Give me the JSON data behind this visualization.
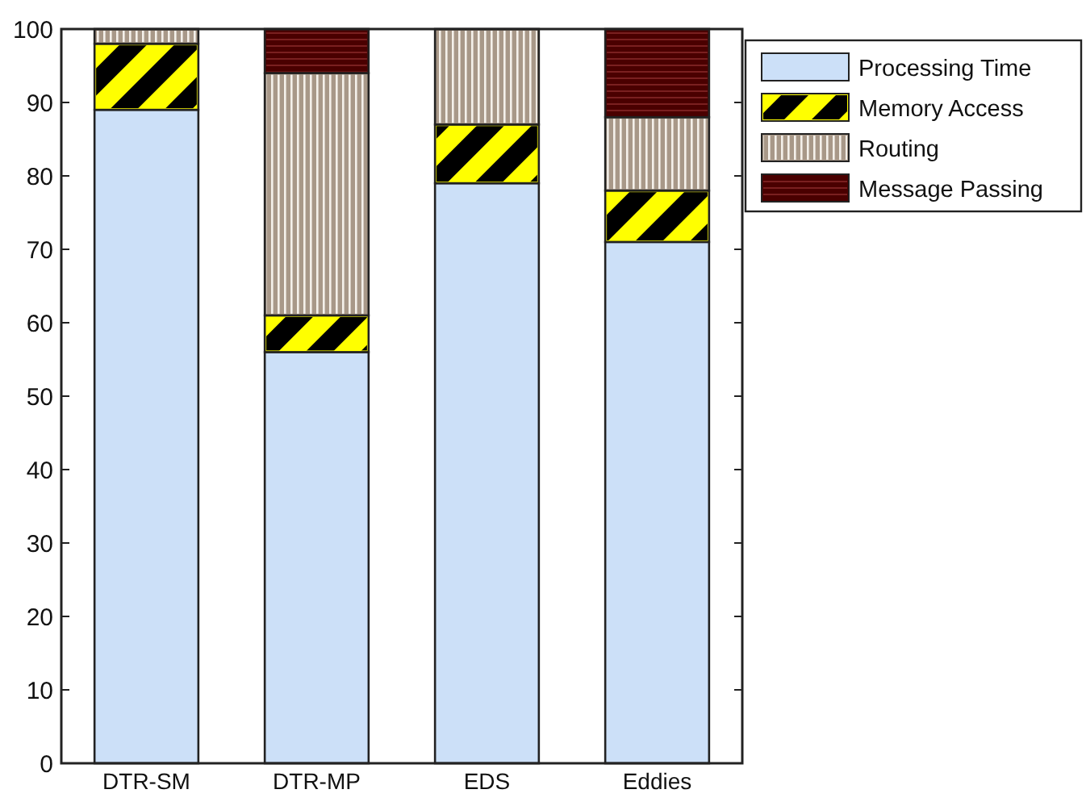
{
  "chart_data": {
    "type": "bar",
    "stacked": true,
    "categories": [
      "DTR-SM",
      "DTR-MP",
      "EDS",
      "Eddies"
    ],
    "series": [
      {
        "name": "Processing Time",
        "color": "#cce0f8",
        "values": [
          89,
          56,
          79,
          71
        ]
      },
      {
        "name": "Memory Access",
        "color": "#ffff00",
        "values": [
          9,
          5,
          8,
          7
        ]
      },
      {
        "name": "Routing",
        "color": "#a89888",
        "values": [
          2,
          33,
          13,
          10
        ]
      },
      {
        "name": "Message Passing",
        "color": "#4a0000",
        "values": [
          0,
          6,
          0,
          12
        ]
      }
    ],
    "ylim": [
      0,
      100
    ],
    "yticks": [
      0,
      10,
      20,
      30,
      40,
      50,
      60,
      70,
      80,
      90,
      100
    ],
    "legend": "top right",
    "grid": false
  }
}
